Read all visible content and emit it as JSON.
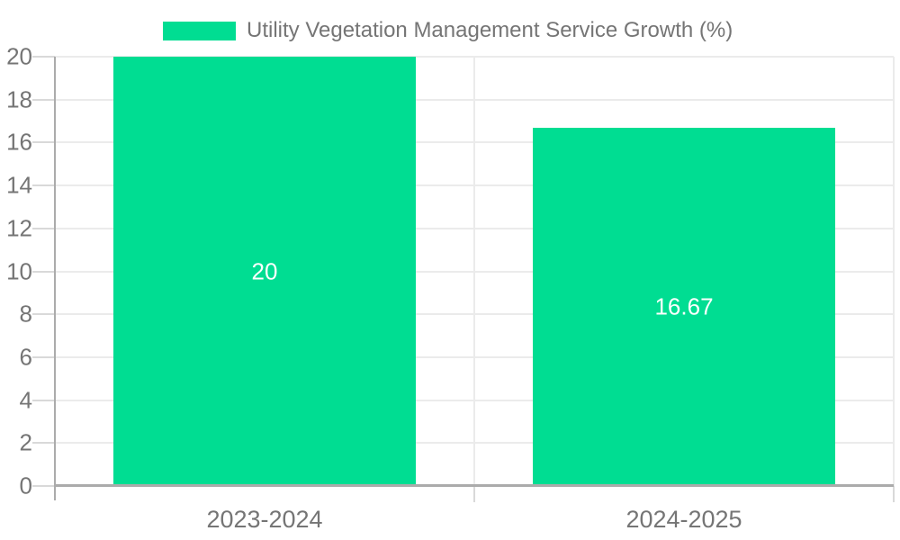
{
  "legend": {
    "label": "Utility Vegetation Management Service Growth (%)"
  },
  "chart_data": {
    "type": "bar",
    "title": "Utility Vegetation Management Service Growth (%)",
    "categories": [
      "2023-2024",
      "2024-2025"
    ],
    "series": [
      {
        "name": "Utility Vegetation Management Service Growth (%)",
        "values": [
          20,
          16.67
        ]
      }
    ],
    "value_labels": [
      "20",
      "16.67"
    ],
    "xlabel": "",
    "ylabel": "",
    "ylim": [
      0,
      20
    ],
    "ytick_step": 2,
    "ytick_labels": [
      "0",
      "2",
      "4",
      "6",
      "8",
      "10",
      "12",
      "14",
      "16",
      "18",
      "20"
    ],
    "grid": true,
    "legend_position": "top-center",
    "colors": {
      "bar": "#00DD92",
      "value_label": "#ffffff",
      "text": "#757575",
      "axis_line": "#ababab",
      "gridline": "#ebebeb",
      "tick": "#d9d9d9",
      "background": "#ffffff"
    }
  }
}
